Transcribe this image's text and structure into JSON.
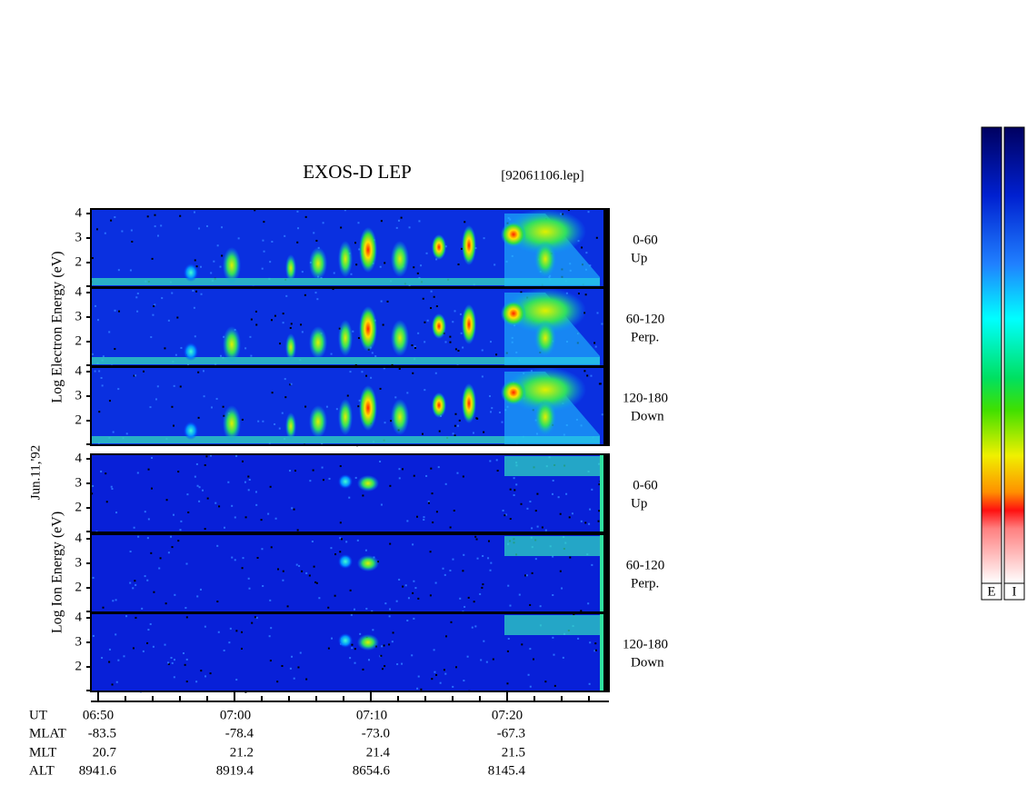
{
  "header": {
    "title": "EXOS-D LEP",
    "file": "[92061106.lep]"
  },
  "date": "Jun.11,'92",
  "electron_axis_label": "Log Electron Energy (eV)",
  "ion_axis_label": "Log Ion Energy (eV)",
  "energy_ticks": [
    "4",
    "3",
    "2"
  ],
  "panels": [
    {
      "range": "0-60",
      "direction": "Up"
    },
    {
      "range": "60-120",
      "direction": "Perp."
    },
    {
      "range": "120-180",
      "direction": "Down"
    }
  ],
  "orbit_table": {
    "row_labels": [
      "UT",
      "MLAT",
      "MLT",
      "ALT"
    ],
    "columns": [
      [
        "06:50",
        "-83.5",
        "20.7",
        "8941.6"
      ],
      [
        "07:00",
        "-78.4",
        "21.2",
        "8919.4"
      ],
      [
        "07:10",
        "-73.0",
        "21.4",
        "8654.6"
      ],
      [
        "07:20",
        "-67.3",
        "21.5",
        "8145.4"
      ]
    ]
  },
  "colorbars": [
    "E",
    "I"
  ]
}
